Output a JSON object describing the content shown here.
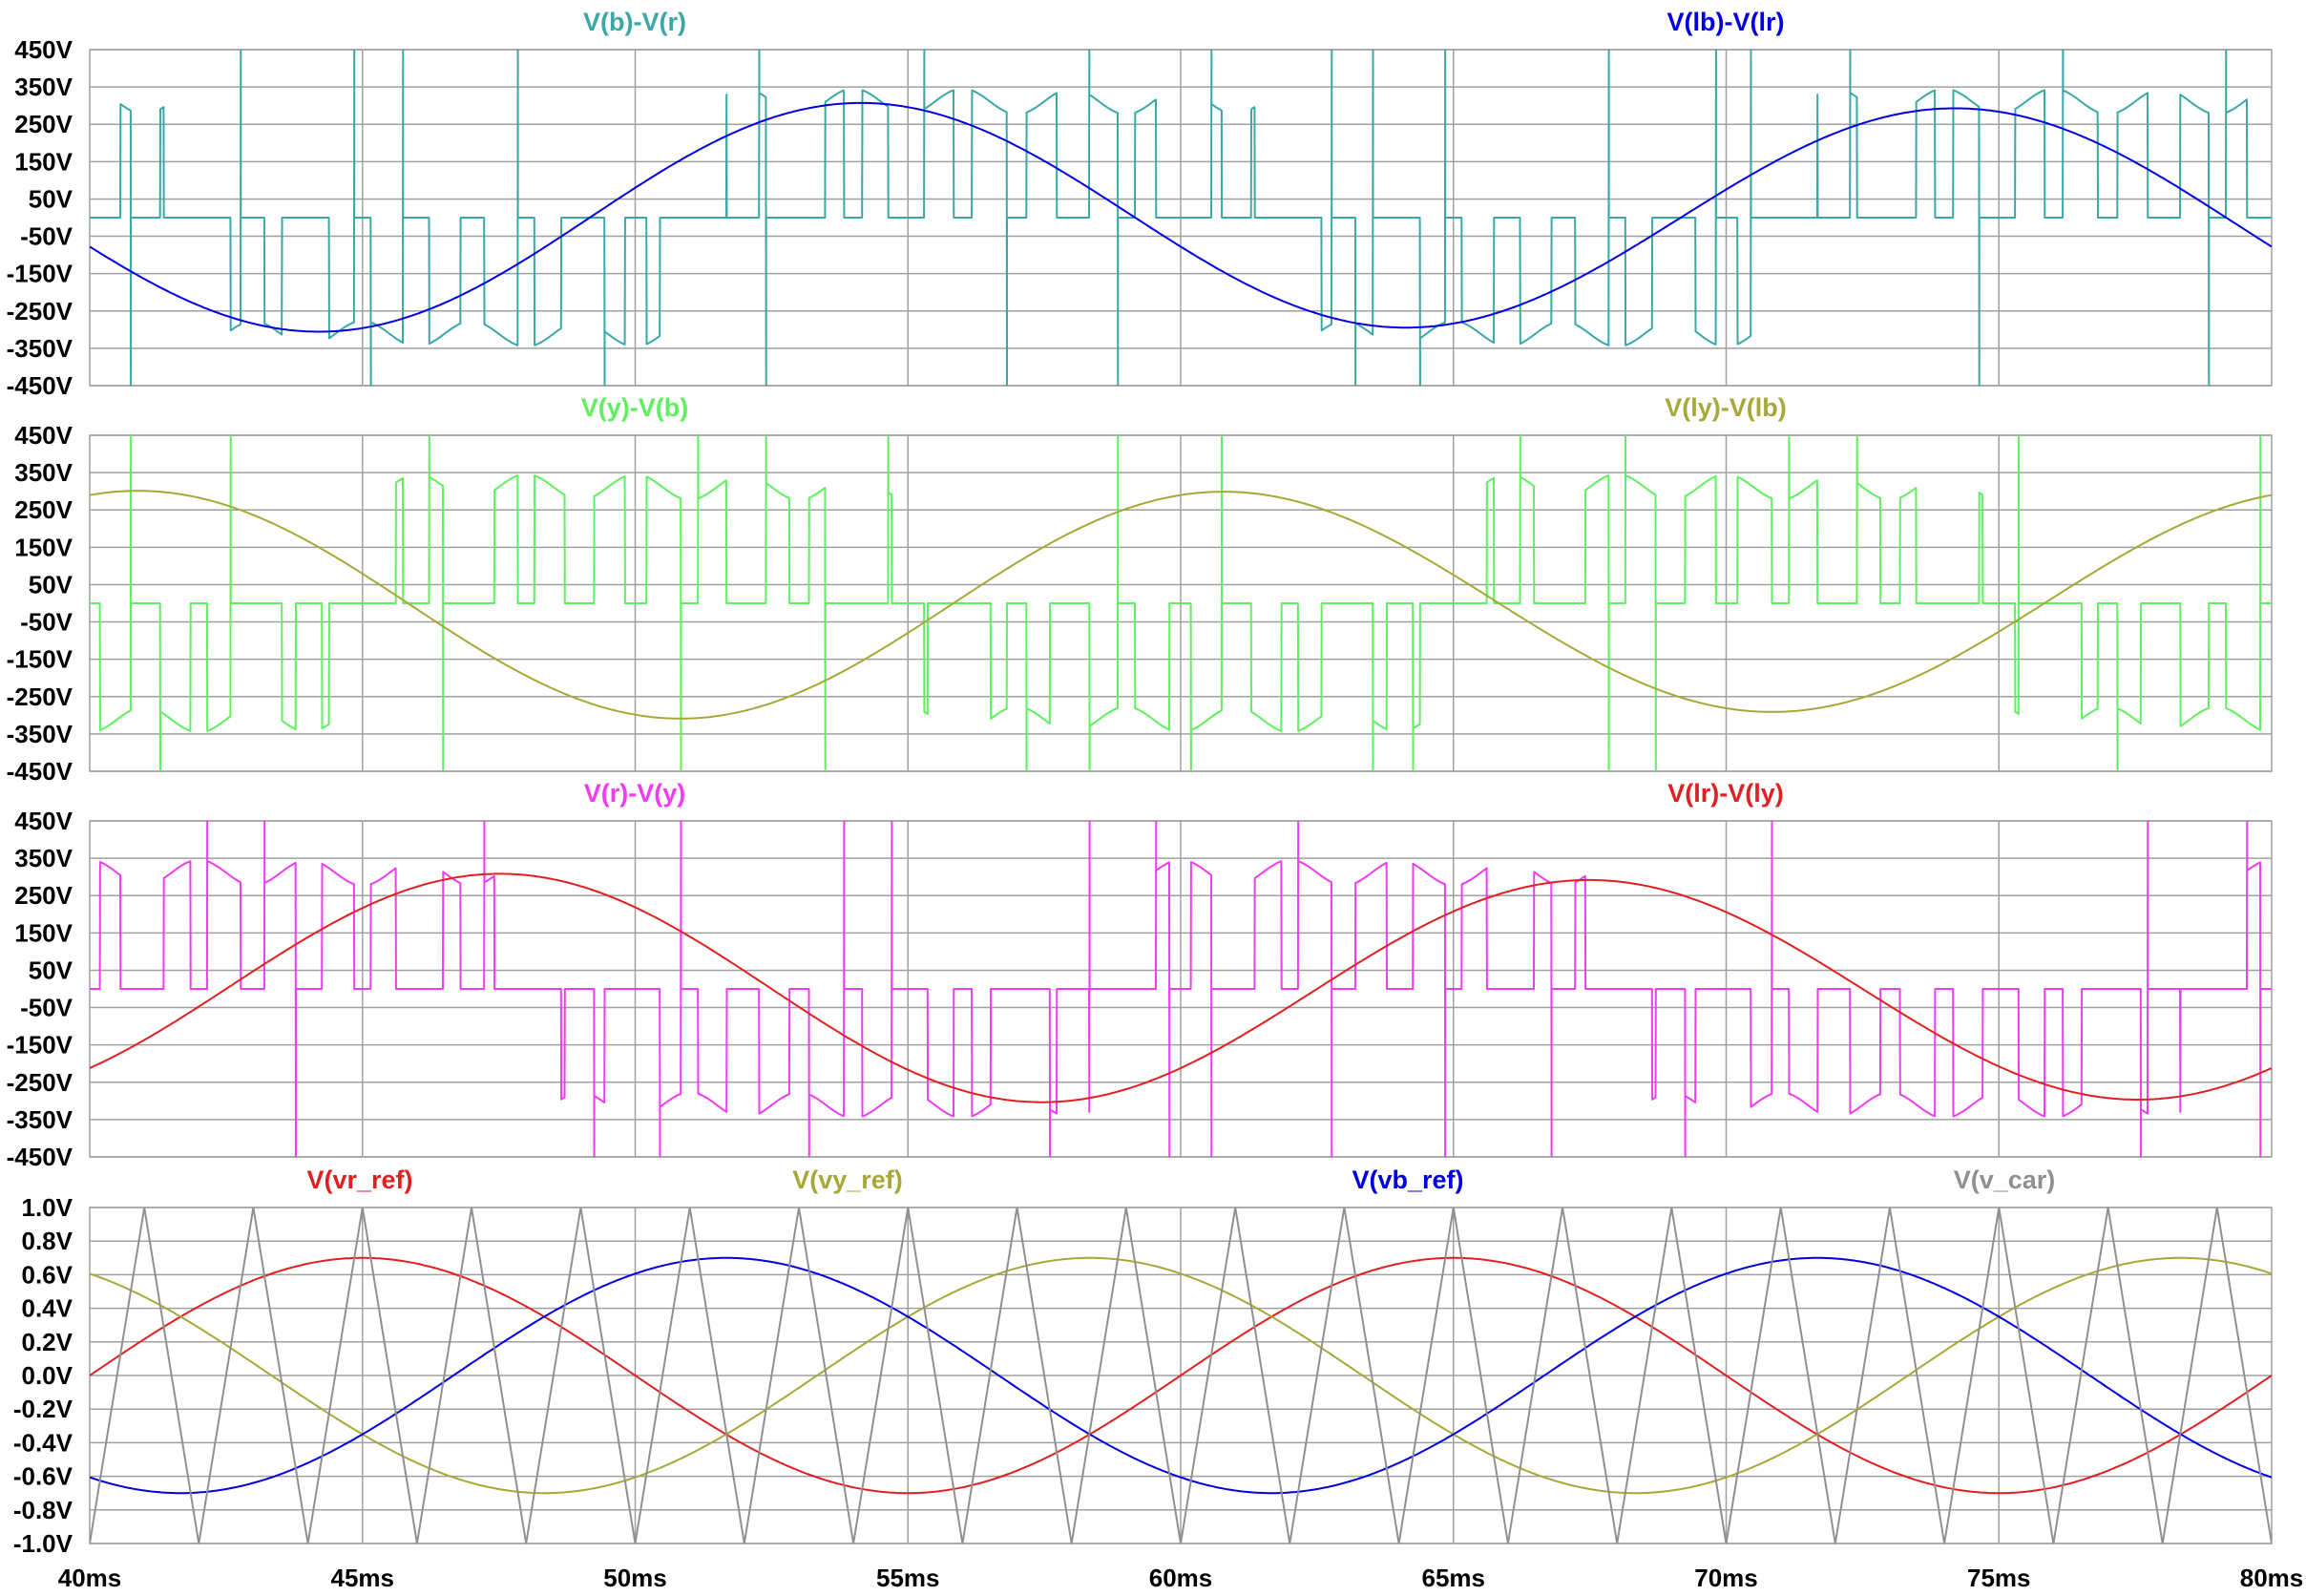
{
  "chart_data": [
    {
      "type": "line",
      "panel": 1,
      "x_unit": "ms",
      "xlim": [
        40,
        80
      ],
      "ylim": [
        -450,
        450
      ],
      "yticks": [
        "450V",
        "350V",
        "250V",
        "150V",
        "50V",
        "-50V",
        "-150V",
        "-250V",
        "-350V",
        "-450V"
      ],
      "series": [
        {
          "name": "V(b)-V(r)",
          "color": "#3aa8a6",
          "kind": "pwm_line_voltage",
          "phase_deg": 240,
          "amplitude": 300,
          "x": [
            40,
            80
          ]
        },
        {
          "name": "V(lb)-V(lr)",
          "color": "#0000e0",
          "kind": "sine",
          "phase_deg": 240,
          "amplitude": 300,
          "x": [
            40,
            42.5,
            45,
            47.5,
            50,
            52.5,
            55,
            57.5,
            60,
            62.5,
            65,
            67.5,
            70,
            72.5,
            75,
            77.5,
            80
          ],
          "y": [
            -75,
            -255,
            -285,
            -180,
            15,
            200,
            295,
            240,
            60,
            -140,
            -280,
            -295,
            -160,
            70,
            305,
            200,
            -60
          ]
        }
      ]
    },
    {
      "type": "line",
      "panel": 2,
      "x_unit": "ms",
      "xlim": [
        40,
        80
      ],
      "ylim": [
        -450,
        450
      ],
      "yticks": [
        "450V",
        "350V",
        "250V",
        "150V",
        "50V",
        "-50V",
        "-150V",
        "-250V",
        "-350V",
        "-450V"
      ],
      "series": [
        {
          "name": "V(y)-V(b)",
          "color": "#5ff05f",
          "kind": "pwm_line_voltage",
          "phase_deg": 120,
          "amplitude": 300,
          "x": [
            40,
            80
          ]
        },
        {
          "name": "V(ly)-V(lb)",
          "color": "#a8a838",
          "kind": "sine",
          "phase_deg": 120,
          "amplitude": 300,
          "x": [
            40,
            42.5,
            45,
            47.5,
            50,
            52.5,
            55,
            57.5,
            60,
            62.5,
            65,
            67.5,
            70,
            72.5,
            75,
            77.5,
            80
          ],
          "y": [
            285,
            250,
            60,
            -150,
            -270,
            -280,
            -130,
            90,
            270,
            290,
            110,
            -110,
            -270,
            -300,
            -150,
            90,
            295
          ]
        }
      ]
    },
    {
      "type": "line",
      "panel": 3,
      "x_unit": "ms",
      "xlim": [
        40,
        80
      ],
      "ylim": [
        -450,
        450
      ],
      "yticks": [
        "450V",
        "350V",
        "250V",
        "150V",
        "50V",
        "-50V",
        "-150V",
        "-250V",
        "-350V",
        "-450V"
      ],
      "series": [
        {
          "name": "V(r)-V(y)",
          "color": "#f03cf0",
          "kind": "pwm_line_voltage",
          "phase_deg": 0,
          "amplitude": 300,
          "x": [
            40,
            80
          ]
        },
        {
          "name": "V(lr)-V(ly)",
          "color": "#e02020",
          "kind": "sine",
          "phase_deg": 0,
          "amplitude": 300,
          "x": [
            40,
            42.5,
            45,
            47.5,
            50,
            52.5,
            55,
            57.5,
            60,
            62.5,
            65,
            67.5,
            70,
            72.5,
            75,
            77.5,
            80
          ],
          "y": [
            -210,
            0,
            210,
            295,
            210,
            0,
            -210,
            -295,
            -210,
            0,
            210,
            295,
            210,
            0,
            -210,
            -295,
            -210
          ]
        }
      ]
    },
    {
      "type": "line",
      "panel": 4,
      "x_unit": "ms",
      "xlim": [
        40,
        80
      ],
      "ylim": [
        -1.0,
        1.0
      ],
      "yticks": [
        "1.0V",
        "0.8V",
        "0.6V",
        "0.4V",
        "0.2V",
        "0.0V",
        "-0.2V",
        "-0.4V",
        "-0.6V",
        "-0.8V",
        "-1.0V"
      ],
      "xticks": [
        "40ms",
        "45ms",
        "50ms",
        "55ms",
        "60ms",
        "65ms",
        "70ms",
        "75ms",
        "80ms"
      ],
      "series": [
        {
          "name": "V(vr_ref)",
          "color": "#e02020",
          "kind": "sine",
          "amplitude": 0.7,
          "period_ms": 20,
          "phase_deg": 0,
          "x": [
            40,
            45,
            50,
            55,
            60,
            65,
            70,
            75,
            80
          ],
          "y": [
            0.0,
            0.7,
            0.0,
            -0.7,
            0.0,
            0.7,
            0.0,
            -0.7,
            0.0
          ]
        },
        {
          "name": "V(vy_ref)",
          "color": "#a8a838",
          "kind": "sine",
          "amplitude": 0.7,
          "period_ms": 20,
          "phase_deg": 120,
          "x": [
            40,
            48.33,
            58.33,
            68.33,
            78.33,
            80
          ],
          "y": [
            0.61,
            -0.7,
            0.7,
            -0.7,
            0.7,
            0.61
          ]
        },
        {
          "name": "V(vb_ref)",
          "color": "#0000e0",
          "kind": "sine",
          "amplitude": 0.7,
          "period_ms": 20,
          "phase_deg": 240,
          "x": [
            40,
            41.67,
            51.67,
            61.67,
            71.67,
            80
          ],
          "y": [
            -0.61,
            -0.7,
            0.7,
            -0.7,
            0.7,
            -0.61
          ]
        },
        {
          "name": "V(v_car)",
          "color": "#909090",
          "kind": "triangle",
          "amplitude": 1.0,
          "period_ms": 2,
          "x": [
            40,
            41,
            42,
            43,
            44
          ],
          "y": [
            -1.0,
            1.0,
            -1.0,
            1.0,
            -1.0
          ]
        }
      ]
    }
  ]
}
